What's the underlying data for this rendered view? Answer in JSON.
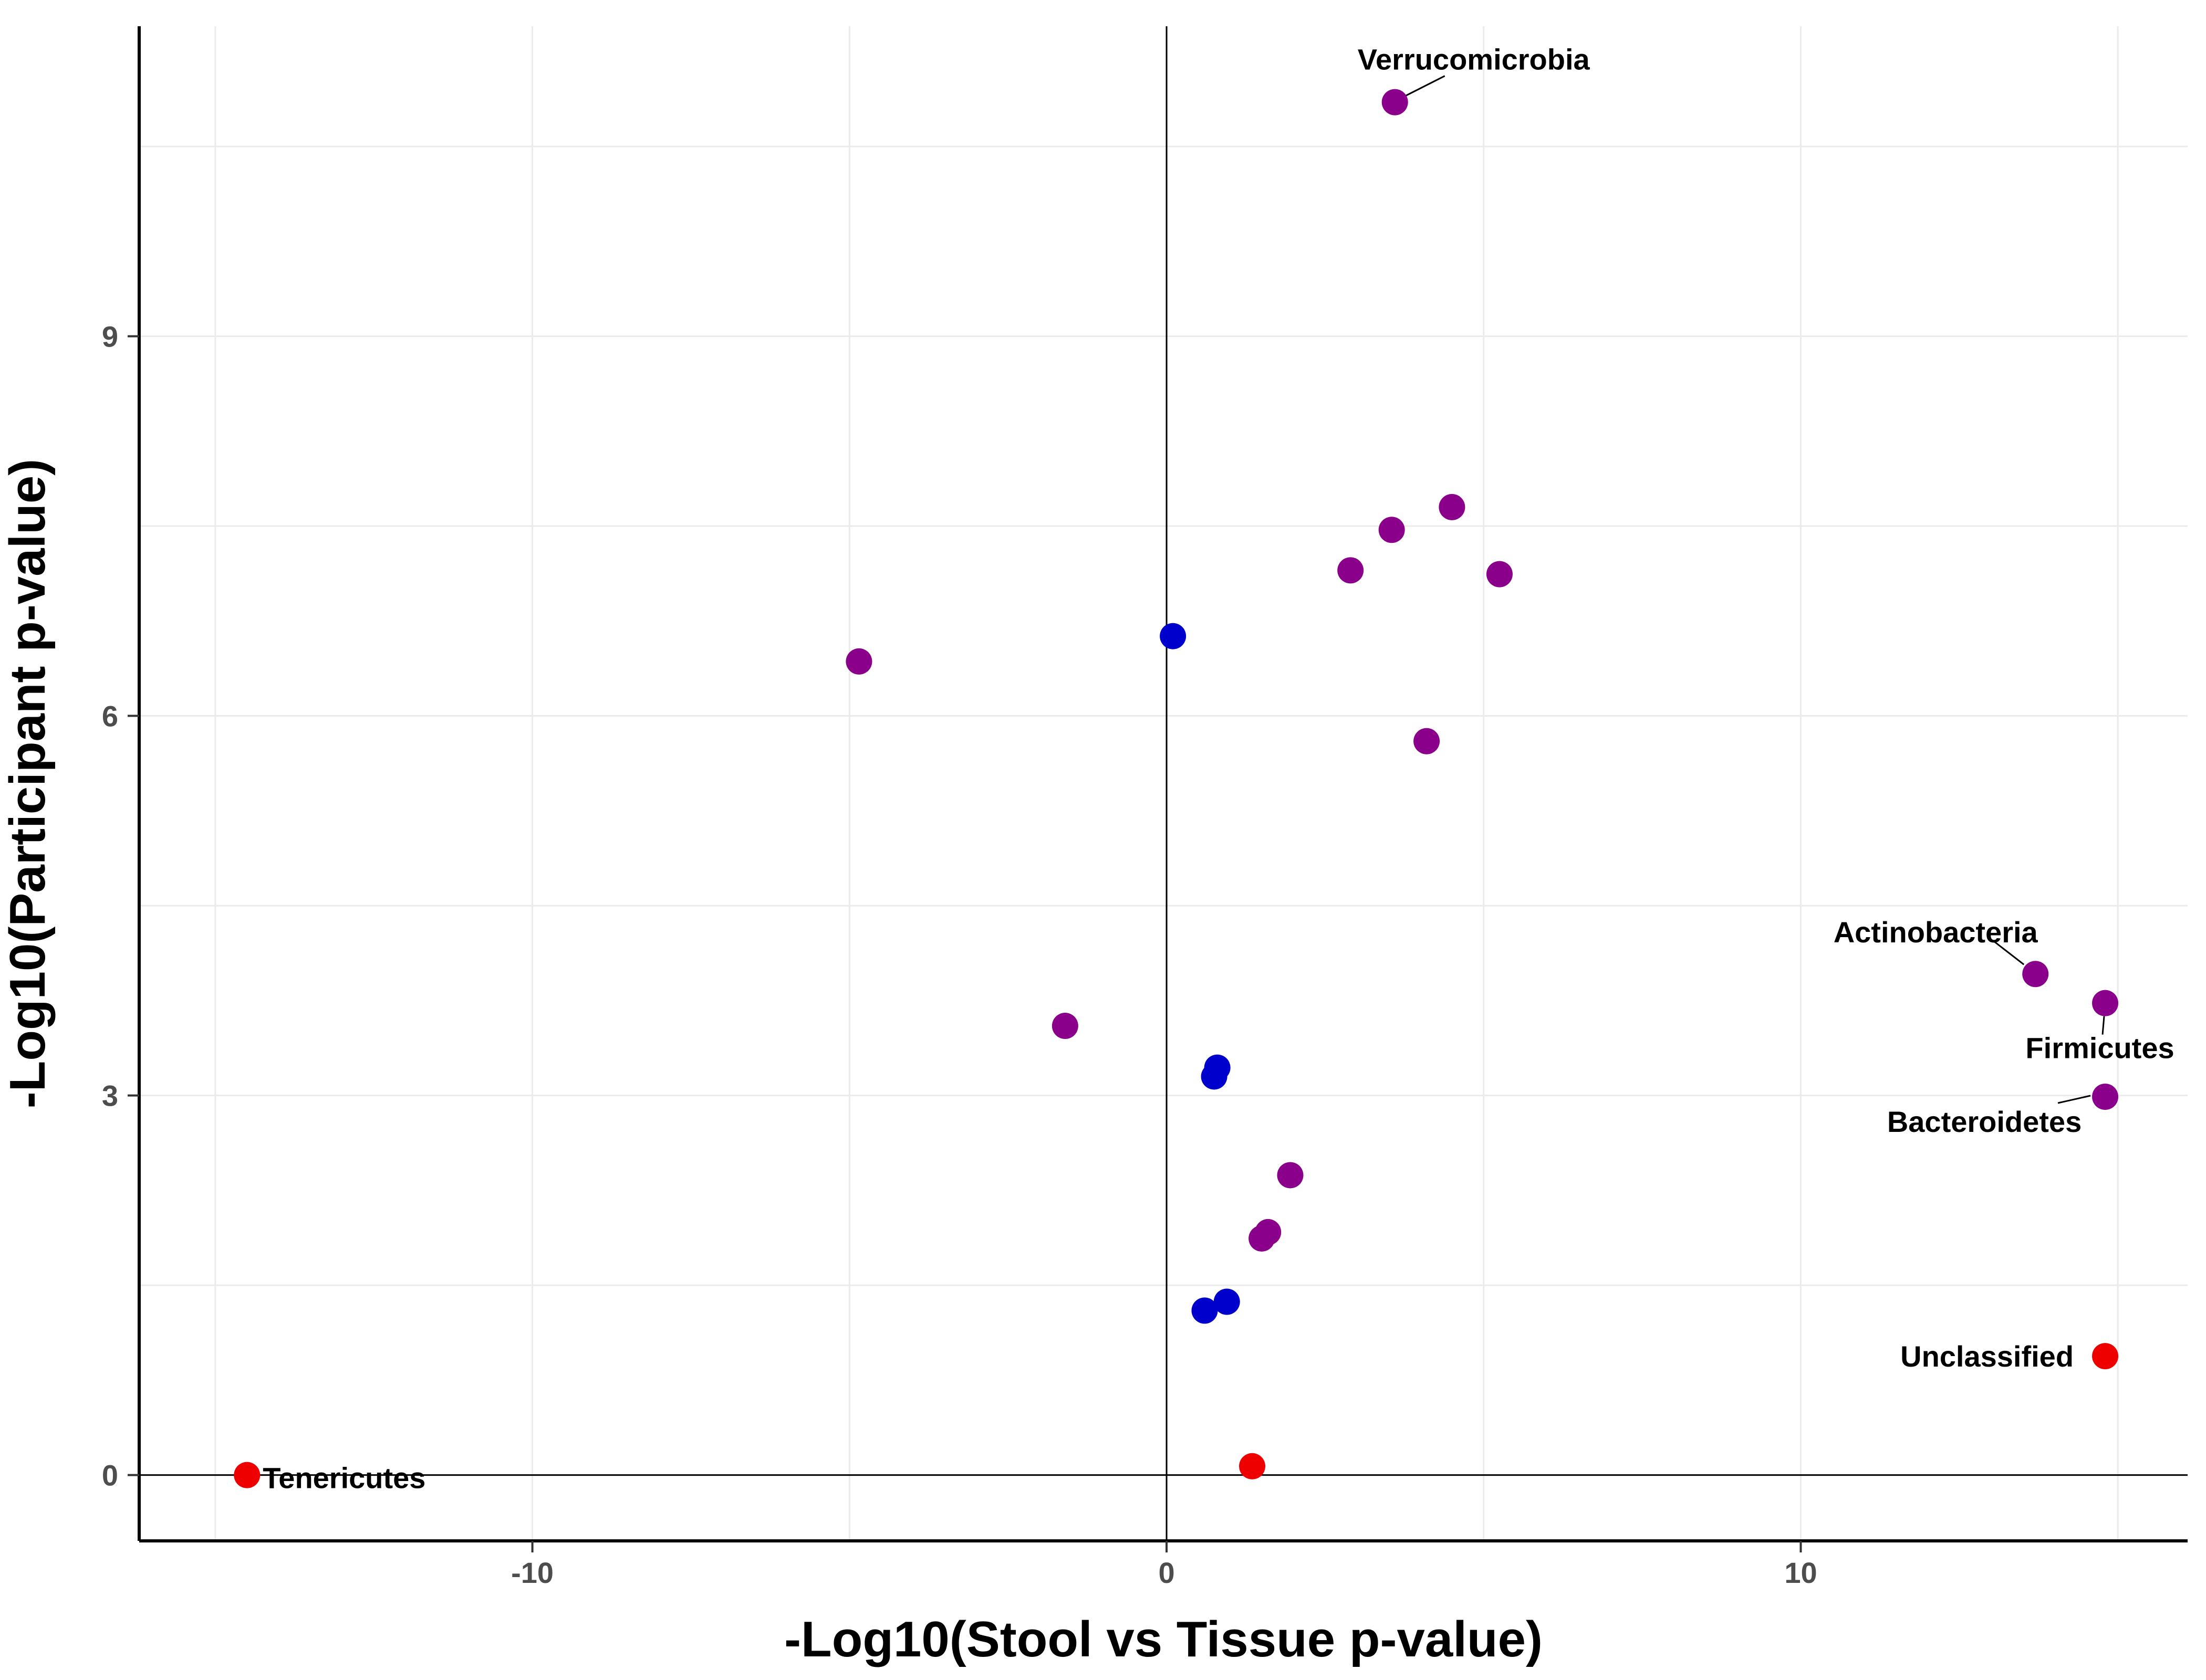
{
  "chart_data": {
    "type": "scatter",
    "title": "",
    "xlabel": "-Log10(Stool vs Tissue p-value)",
    "ylabel": "-Log10(Participant p-value)",
    "xlim": [
      -16.2,
      16.1
    ],
    "ylim": [
      -0.52,
      11.45
    ],
    "xticks": [
      -10,
      0,
      10
    ],
    "xtick_labels": [
      "-10",
      "0",
      "10"
    ],
    "yticks": [
      0,
      3,
      6,
      9
    ],
    "ytick_labels": [
      "0",
      "3",
      "6",
      "9"
    ],
    "grid": true,
    "reference_lines": {
      "x": 0,
      "y": 0
    },
    "colors": {
      "purple": "#8B008B",
      "blue": "#0000CD",
      "red": "#EE0000"
    },
    "points": [
      {
        "x": 3.6,
        "y": 10.85,
        "color": "purple",
        "label": "Verrucomicrobia"
      },
      {
        "x": 4.5,
        "y": 7.65,
        "color": "purple",
        "label": ""
      },
      {
        "x": 3.55,
        "y": 7.47,
        "color": "purple",
        "label": ""
      },
      {
        "x": 2.9,
        "y": 7.15,
        "color": "purple",
        "label": ""
      },
      {
        "x": 5.25,
        "y": 7.12,
        "color": "purple",
        "label": ""
      },
      {
        "x": 0.1,
        "y": 6.63,
        "color": "blue",
        "label": ""
      },
      {
        "x": -4.85,
        "y": 6.43,
        "color": "purple",
        "label": ""
      },
      {
        "x": 4.1,
        "y": 5.8,
        "color": "purple",
        "label": ""
      },
      {
        "x": -1.6,
        "y": 3.55,
        "color": "purple",
        "label": ""
      },
      {
        "x": 0.8,
        "y": 3.22,
        "color": "blue",
        "label": ""
      },
      {
        "x": 0.75,
        "y": 3.15,
        "color": "blue",
        "label": ""
      },
      {
        "x": 1.95,
        "y": 2.37,
        "color": "purple",
        "label": ""
      },
      {
        "x": 1.6,
        "y": 1.92,
        "color": "purple",
        "label": ""
      },
      {
        "x": 1.5,
        "y": 1.87,
        "color": "purple",
        "label": ""
      },
      {
        "x": 0.95,
        "y": 1.37,
        "color": "blue",
        "label": ""
      },
      {
        "x": 0.6,
        "y": 1.3,
        "color": "blue",
        "label": ""
      },
      {
        "x": 1.35,
        "y": 0.07,
        "color": "red",
        "label": ""
      },
      {
        "x": -14.5,
        "y": 0.0,
        "color": "red",
        "label": "Tenericutes"
      },
      {
        "x": 13.7,
        "y": 3.96,
        "color": "purple",
        "label": "Actinobacteria"
      },
      {
        "x": 14.8,
        "y": 3.73,
        "color": "purple",
        "label": "Firmicutes"
      },
      {
        "x": 14.8,
        "y": 2.99,
        "color": "purple",
        "label": "Bacteroidetes"
      },
      {
        "x": 14.8,
        "y": 0.94,
        "color": "red",
        "label": "Unclassified"
      }
    ]
  }
}
